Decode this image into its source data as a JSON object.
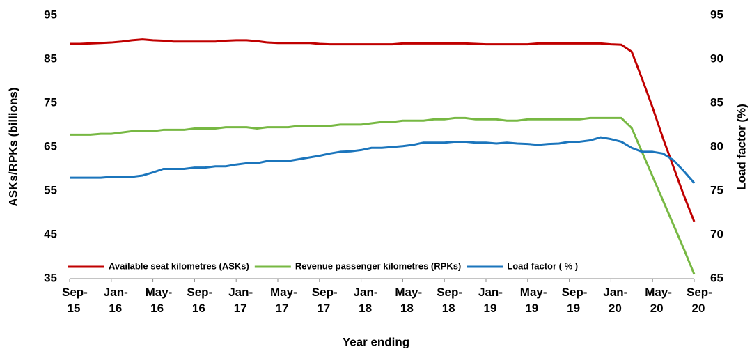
{
  "chart_data": {
    "type": "line",
    "xlabel": "Year ending",
    "ylabel": "ASKs/RPKs (billions)",
    "y2label": "Load factor (%)",
    "categories": [
      "Sep-15",
      null,
      null,
      null,
      "Jan-16",
      null,
      null,
      null,
      "May-16",
      null,
      null,
      null,
      "Sep-16",
      null,
      null,
      null,
      "Jan-17",
      null,
      null,
      null,
      "May-17",
      null,
      null,
      null,
      "Sep-17",
      null,
      null,
      null,
      "Jan-18",
      null,
      null,
      null,
      "May-18",
      null,
      null,
      null,
      "Sep-18",
      null,
      null,
      null,
      "Jan-19",
      null,
      null,
      null,
      "May-19",
      null,
      null,
      null,
      "Sep-19",
      null,
      null,
      null,
      "Jan-20",
      null,
      null,
      null,
      "May-20",
      null,
      null,
      null,
      "Sep-20"
    ],
    "ylim": [
      35,
      95
    ],
    "yticks": [
      35,
      45,
      55,
      65,
      75,
      85,
      95
    ],
    "y2lim": [
      65,
      95
    ],
    "y2ticks": [
      65,
      70,
      75,
      80,
      85,
      90,
      95
    ],
    "legend": "bottom",
    "grid": false,
    "series": [
      {
        "name": "Available seat kilometres (ASKs)",
        "color": "#c00000",
        "axis": "y",
        "values": [
          88.5,
          88.5,
          88.6,
          88.7,
          88.8,
          89.0,
          89.3,
          89.5,
          89.3,
          89.2,
          89.0,
          89.0,
          89.0,
          89.0,
          89.0,
          89.2,
          89.3,
          89.3,
          89.1,
          88.8,
          88.7,
          88.7,
          88.7,
          88.7,
          88.5,
          88.4,
          88.4,
          88.4,
          88.4,
          88.4,
          88.4,
          88.4,
          88.6,
          88.6,
          88.6,
          88.6,
          88.6,
          88.6,
          88.6,
          88.5,
          88.4,
          88.4,
          88.4,
          88.4,
          88.4,
          88.6,
          88.6,
          88.6,
          88.6,
          88.6,
          88.6,
          88.6,
          88.4,
          88.3,
          86.7,
          80.5,
          74.0,
          67.0,
          60.5,
          54.0,
          48.0
        ]
      },
      {
        "name": "Revenue passenger kilometres (RPKs)",
        "color": "#77b843",
        "axis": "y",
        "values": [
          67.8,
          67.8,
          67.8,
          68.0,
          68.0,
          68.3,
          68.6,
          68.6,
          68.6,
          68.9,
          68.9,
          68.9,
          69.2,
          69.2,
          69.2,
          69.5,
          69.5,
          69.5,
          69.2,
          69.5,
          69.5,
          69.5,
          69.8,
          69.8,
          69.8,
          69.8,
          70.1,
          70.1,
          70.1,
          70.4,
          70.7,
          70.7,
          71.0,
          71.0,
          71.0,
          71.3,
          71.3,
          71.6,
          71.6,
          71.3,
          71.3,
          71.3,
          71.0,
          71.0,
          71.3,
          71.3,
          71.3,
          71.3,
          71.3,
          71.3,
          71.6,
          71.6,
          71.6,
          71.6,
          69.3,
          63.8,
          58.3,
          52.8,
          47.3,
          41.8,
          36.0
        ]
      },
      {
        "name": "Load factor ( % )",
        "color": "#1b75bc",
        "axis": "y2",
        "values": [
          76.5,
          76.5,
          76.5,
          76.5,
          76.6,
          76.6,
          76.6,
          76.75,
          77.1,
          77.5,
          77.5,
          77.5,
          77.65,
          77.65,
          77.8,
          77.8,
          78.0,
          78.15,
          78.15,
          78.4,
          78.4,
          78.4,
          78.6,
          78.8,
          79.0,
          79.25,
          79.45,
          79.5,
          79.65,
          79.9,
          79.9,
          80.0,
          80.1,
          80.25,
          80.5,
          80.5,
          80.5,
          80.6,
          80.6,
          80.5,
          80.5,
          80.4,
          80.5,
          80.4,
          80.35,
          80.25,
          80.35,
          80.4,
          80.6,
          80.6,
          80.75,
          81.1,
          80.9,
          80.6,
          79.9,
          79.45,
          79.45,
          79.25,
          78.5,
          77.25,
          75.9
        ]
      }
    ]
  }
}
